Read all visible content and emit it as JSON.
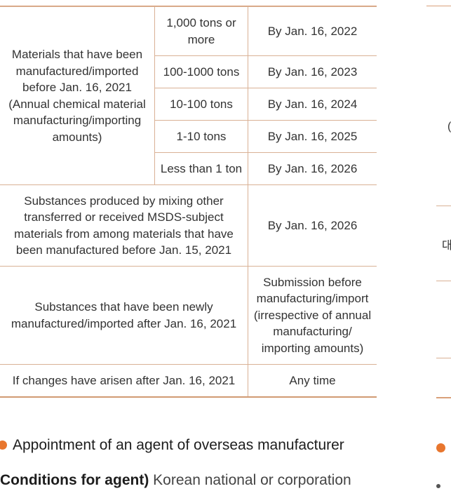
{
  "table": {
    "group1_label": "Materials that have been manufactured/imported before Jan. 16, 2021",
    "group1_note": "(Annual chemical material manufacturing/importing amounts)",
    "tiers": [
      {
        "amount": "1,000 tons or more",
        "deadline": "By Jan. 16, 2022"
      },
      {
        "amount": "100-1000 tons",
        "deadline": "By Jan. 16,  2023"
      },
      {
        "amount": "10-100 tons",
        "deadline": "By Jan. 16, 2024"
      },
      {
        "amount": "1-10 tons",
        "deadline": "By Jan. 16, 2025"
      },
      {
        "amount": "Less than 1 ton",
        "deadline": "By Jan. 16, 2026"
      }
    ],
    "mixed_label": "Substances produced by mixing other transferred or received MSDS-subject materials from among materials that have been manufactured before Jan. 15, 2021",
    "mixed_deadline": "By Jan. 16, 2026",
    "new_label": "Substances that have been newly manufactured/imported after Jan. 16, 2021",
    "new_deadline": "Submission before manufacturing/import (irrespective of annual manufacturing/ importing amounts)",
    "changes_label": "If changes have arisen after Jan. 16, 2021",
    "changes_deadline": "Any time"
  },
  "right_fragments": {
    "char1": "(",
    "char2": "대"
  },
  "section": {
    "heading": "Appointment of an agent of overseas manufacturer",
    "conditions_label": "Conditions for agent)",
    "conditions_text": "Korean national or corporation"
  },
  "colors": {
    "accent": "#e8762e",
    "table_border": "#d9b195"
  }
}
